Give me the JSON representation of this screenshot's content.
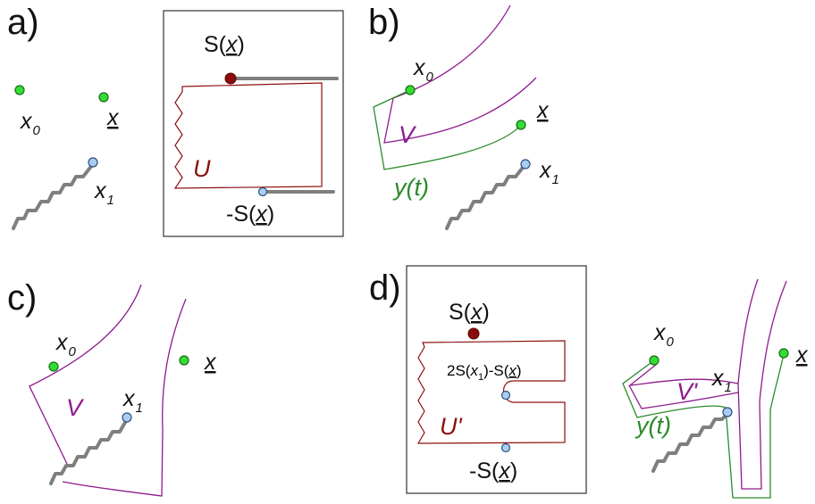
{
  "panels": {
    "a": {
      "label": "a)"
    },
    "b": {
      "label": "b)"
    },
    "c": {
      "label": "c)"
    },
    "d": {
      "label": "d)"
    }
  },
  "symbols": {
    "x0_base": "x",
    "x0_sub": "0",
    "x1_base": "x",
    "x1_sub": "1",
    "x_underline": "x",
    "V": "V",
    "U": "U",
    "V_prime": "V'",
    "U_prime": "U'"
  },
  "labels": {
    "S_prefix": "S(",
    "minus_S_prefix": "-S(",
    "close_paren": ")",
    "two_S_prefix": "2S(",
    "two_S_sub": "1",
    "two_S_mid": ")-S(",
    "y_t_prefix": "y(",
    "y_t_var": "t",
    "y_t_suffix": ")"
  },
  "colors": {
    "green_point": "#33dd33",
    "blue_point": "#a9cdf2",
    "red_point": "#8a0c0c",
    "branch_cut": "#7f7f7f",
    "region_V": "#8e1b8e",
    "path_y": "#2a8a2a",
    "region_U": "#8a1010"
  }
}
